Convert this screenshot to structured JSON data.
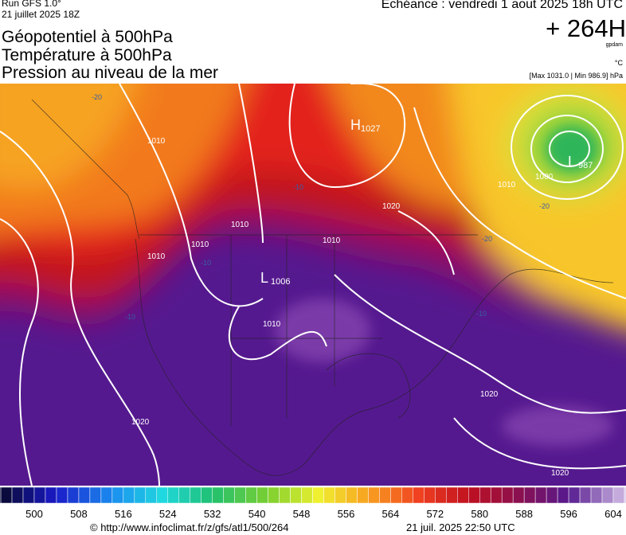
{
  "header": {
    "run": "Run GFS 1.0°",
    "run_date": "21 juillet 2025 18Z",
    "titles": [
      "Géopotentiel à 500hPa",
      "Température à 500hPa",
      "Pression au niveau de la mer"
    ],
    "echeance": "Echéance : vendredi 1 aout 2025 18h UTC",
    "horizon": "+ 264H",
    "units": [
      "gpdam",
      "°C"
    ],
    "range": "[Max 1031.0 | Min 986.9] hPa"
  },
  "map": {
    "centers": [
      {
        "letter": "H",
        "value": "1027"
      },
      {
        "letter": "L",
        "value": "1006"
      },
      {
        "letter": "L",
        "value": "987"
      }
    ],
    "isobar_labels": [
      "1010",
      "1020",
      "1010",
      "1010",
      "1010",
      "1010",
      "1010",
      "1000",
      "1020",
      "1020",
      "1020",
      "1010"
    ],
    "temperature_labels": [
      "-20",
      "-10",
      "-10",
      "-20",
      "-20",
      "-10",
      "-10"
    ]
  },
  "colorbar": {
    "ticks": [
      500,
      508,
      516,
      524,
      532,
      540,
      548,
      556,
      564,
      572,
      580,
      588,
      596,
      604
    ]
  },
  "footer": {
    "url": "© http://www.infoclimat.fr/z/gfs/atl1/500/264",
    "timestamp": "21 juil. 2025 22:50 UTC"
  }
}
